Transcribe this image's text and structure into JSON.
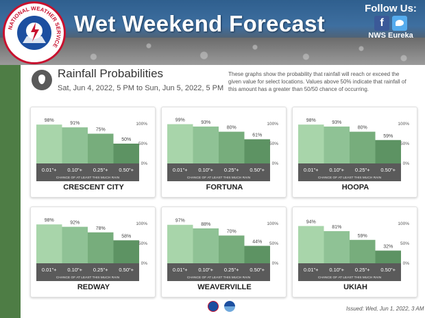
{
  "header": {
    "title": "Wet Weekend Forecast",
    "follow_label": "Follow Us:",
    "facebook_glyph": "f",
    "handle": "NWS Eureka",
    "logo_text": "NATIONAL WEATHER SERVICE"
  },
  "info": {
    "title": "Rainfall Probabilities",
    "date_range": "Sat, Jun 4, 2022, 5 PM to Sun, Jun 5, 2022, 5 PM",
    "description": "These graphs show the probability that rainfall will reach or exceed the given value for select locations. Values above 50% indicate that rainfall of this amount has a greater than 50/50 chance of occurring."
  },
  "issued": "Issued: Wed, Jun 1, 2022, 3 AM",
  "colors": {
    "bar": [
      "#a8d5aa",
      "#8fc295",
      "#77ad7c",
      "#5d9363"
    ],
    "axis_band": "#5a5a5a",
    "strip": "#4e7d45"
  },
  "chart_data": [
    {
      "type": "bar",
      "title": "CRESCENT CITY",
      "categories": [
        "0.01\"+",
        "0.10\"+",
        "0.25\"+",
        "0.50\"+"
      ],
      "values": [
        98,
        91,
        75,
        50
      ],
      "data_labels": [
        "98%",
        "91%",
        "75%",
        "50%"
      ],
      "yticks": [
        "100%",
        "50%",
        "0%"
      ],
      "xlabel": "CHANCE OF AT LEAST THIS MUCH RAIN",
      "ylim": [
        0,
        100
      ]
    },
    {
      "type": "bar",
      "title": "FORTUNA",
      "categories": [
        "0.01\"+",
        "0.10\"+",
        "0.25\"+",
        "0.50\"+"
      ],
      "values": [
        99,
        93,
        80,
        61
      ],
      "data_labels": [
        "99%",
        "93%",
        "80%",
        "61%"
      ],
      "yticks": [
        "100%",
        "50%",
        "0%"
      ],
      "xlabel": "CHANCE OF AT LEAST THIS MUCH RAIN",
      "ylim": [
        0,
        100
      ]
    },
    {
      "type": "bar",
      "title": "HOOPA",
      "categories": [
        "0.01\"+",
        "0.10\"+",
        "0.25\"+",
        "0.50\"+"
      ],
      "values": [
        98,
        93,
        80,
        59
      ],
      "data_labels": [
        "98%",
        "93%",
        "80%",
        "59%"
      ],
      "yticks": [
        "100%",
        "50%",
        "0%"
      ],
      "xlabel": "CHANCE OF AT LEAST THIS MUCH RAIN",
      "ylim": [
        0,
        100
      ]
    },
    {
      "type": "bar",
      "title": "REDWAY",
      "categories": [
        "0.01\"+",
        "0.10\"+",
        "0.25\"+",
        "0.50\"+"
      ],
      "values": [
        98,
        92,
        78,
        58
      ],
      "data_labels": [
        "98%",
        "92%",
        "78%",
        "58%"
      ],
      "yticks": [
        "100%",
        "50%",
        "0%"
      ],
      "xlabel": "CHANCE OF AT LEAST THIS MUCH RAIN",
      "ylim": [
        0,
        100
      ]
    },
    {
      "type": "bar",
      "title": "WEAVERVILLE",
      "categories": [
        "0.01\"+",
        "0.10\"+",
        "0.25\"+",
        "0.50\"+"
      ],
      "values": [
        97,
        88,
        70,
        44
      ],
      "data_labels": [
        "97%",
        "88%",
        "70%",
        "44%"
      ],
      "yticks": [
        "100%",
        "50%",
        "0%"
      ],
      "xlabel": "CHANCE OF AT LEAST THIS MUCH RAIN",
      "ylim": [
        0,
        100
      ]
    },
    {
      "type": "bar",
      "title": "UKIAH",
      "categories": [
        "0.01\"+",
        "0.10\"+",
        "0.25\"+",
        "0.50\"+"
      ],
      "values": [
        94,
        81,
        59,
        32
      ],
      "data_labels": [
        "94%",
        "81%",
        "59%",
        "32%"
      ],
      "yticks": [
        "100%",
        "50%",
        "0%"
      ],
      "xlabel": "CHANCE OF AT LEAST THIS MUCH RAIN",
      "ylim": [
        0,
        100
      ]
    }
  ]
}
